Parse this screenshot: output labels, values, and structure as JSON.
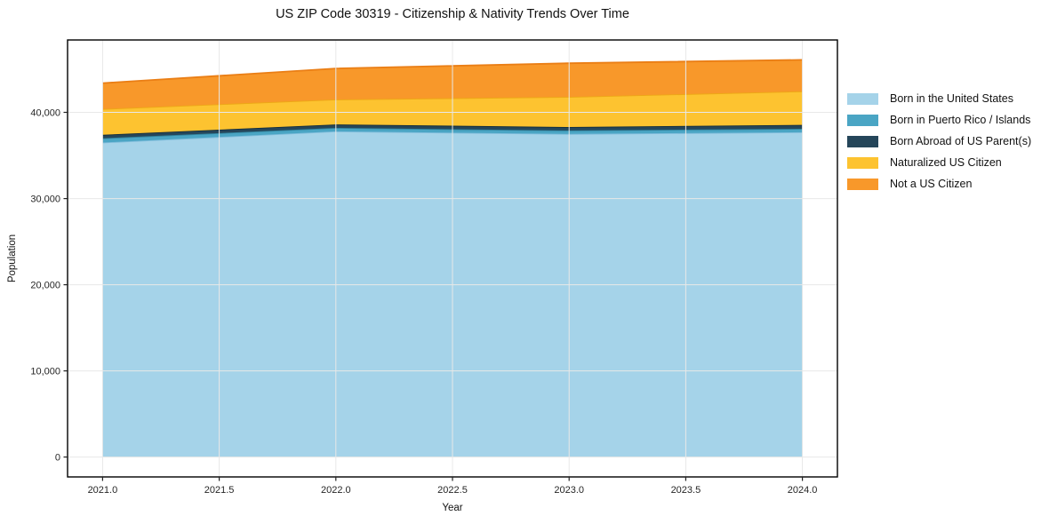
{
  "chart_data": {
    "type": "area",
    "stacked": true,
    "title": "US ZIP Code 30319 - Citizenship & Nativity Trends Over Time",
    "xlabel": "Year",
    "ylabel": "Population",
    "x": [
      2021,
      2022,
      2023,
      2024
    ],
    "series": [
      {
        "id": "born_us",
        "name": "Born in the United States",
        "color": "#a5d3e9",
        "edge_color": "#7fbcdb",
        "values": [
          36500,
          37800,
          37500,
          37700
        ]
      },
      {
        "id": "puerto_rico",
        "name": "Born in Puerto Rico / Islands",
        "color": "#4aa5c4",
        "edge_color": "#32859f",
        "values": [
          500,
          400,
          400,
          400
        ]
      },
      {
        "id": "born_abroad",
        "name": "Born Abroad of US Parent(s)",
        "color": "#25465a",
        "edge_color": "#132d3d",
        "values": [
          400,
          400,
          400,
          450
        ]
      },
      {
        "id": "naturalized",
        "name": "Naturalized US Citizen",
        "color": "#fdc330",
        "edge_color": "#eda816",
        "values": [
          3000,
          2900,
          3500,
          3900
        ]
      },
      {
        "id": "not_citizen",
        "name": "Not a US Citizen",
        "color": "#f8982a",
        "edge_color": "#ea7e15",
        "values": [
          3000,
          3600,
          3900,
          3650
        ]
      }
    ],
    "stack_totals": [
      43400,
      45100,
      45700,
      46100
    ],
    "x_ticks": [
      {
        "value": 2021.0,
        "label": "2021.0"
      },
      {
        "value": 2021.5,
        "label": "2021.5"
      },
      {
        "value": 2022.0,
        "label": "2022.0"
      },
      {
        "value": 2022.5,
        "label": "2022.5"
      },
      {
        "value": 2023.0,
        "label": "2023.0"
      },
      {
        "value": 2023.5,
        "label": "2023.5"
      },
      {
        "value": 2024.0,
        "label": "2024.0"
      }
    ],
    "y_ticks": [
      {
        "value": 0,
        "label": "0"
      },
      {
        "value": 10000,
        "label": "10,000"
      },
      {
        "value": 20000,
        "label": "20,000"
      },
      {
        "value": 30000,
        "label": "30,000"
      },
      {
        "value": 40000,
        "label": "40,000"
      }
    ],
    "xlim": [
      2020.85,
      2024.15
    ],
    "ylim": [
      -2305,
      48405
    ],
    "grid": true,
    "legend_position": "right-outside"
  },
  "colors": {
    "background": "#ffffff",
    "grid": "#e8e8e8",
    "frame": "#000000",
    "tick": "#222222",
    "tick_text": "#262626"
  }
}
